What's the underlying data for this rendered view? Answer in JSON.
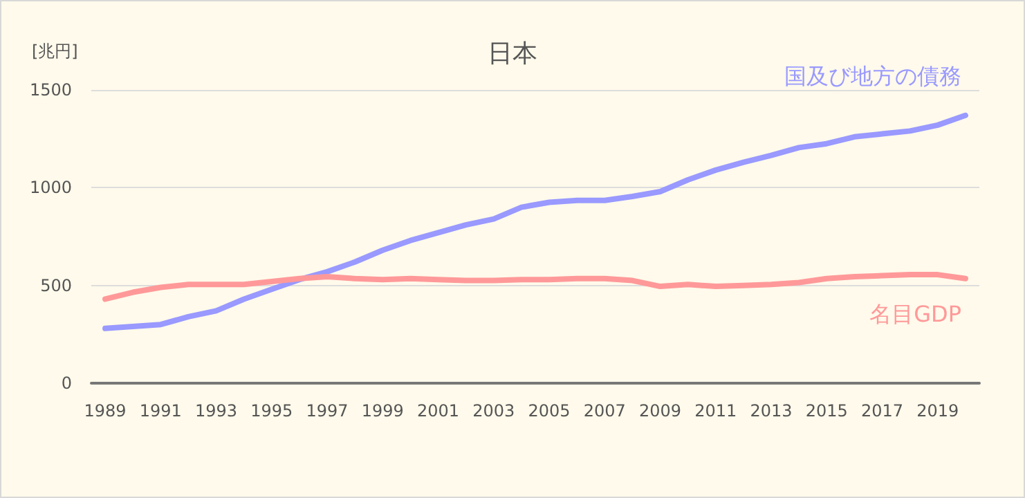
{
  "chart_data": {
    "type": "line",
    "title": "日本",
    "ylabel": "[兆円]",
    "categories": [
      "1989",
      null,
      "1991",
      null,
      "1993",
      null,
      "1995",
      null,
      "1997",
      null,
      "1999",
      null,
      "2001",
      null,
      "2003",
      null,
      "2005",
      null,
      "2007",
      null,
      "2009",
      null,
      "2011",
      null,
      "2013",
      null,
      "2015",
      null,
      "2017",
      null,
      "2019",
      null
    ],
    "series": [
      {
        "name": "国及び地方の債務",
        "color": "#9999ff",
        "values": [
          280,
          290,
          300,
          340,
          370,
          430,
          480,
          530,
          570,
          620,
          680,
          730,
          770,
          810,
          840,
          900,
          925,
          935,
          935,
          955,
          980,
          1040,
          1090,
          1130,
          1165,
          1205,
          1225,
          1260,
          1275,
          1290,
          1320,
          1370
        ]
      },
      {
        "name": "名目GDP",
        "color": "#ff9999",
        "values": [
          430,
          465,
          490,
          505,
          505,
          505,
          520,
          535,
          545,
          535,
          530,
          535,
          530,
          525,
          525,
          530,
          530,
          535,
          535,
          525,
          495,
          505,
          495,
          500,
          505,
          515,
          535,
          545,
          550,
          555,
          555,
          535
        ]
      }
    ],
    "ylim": [
      0,
      1500
    ],
    "yticks": [
      0,
      500,
      1000,
      1500
    ],
    "grid": "y",
    "legend": false,
    "marker": "none",
    "line_style": "solid"
  }
}
